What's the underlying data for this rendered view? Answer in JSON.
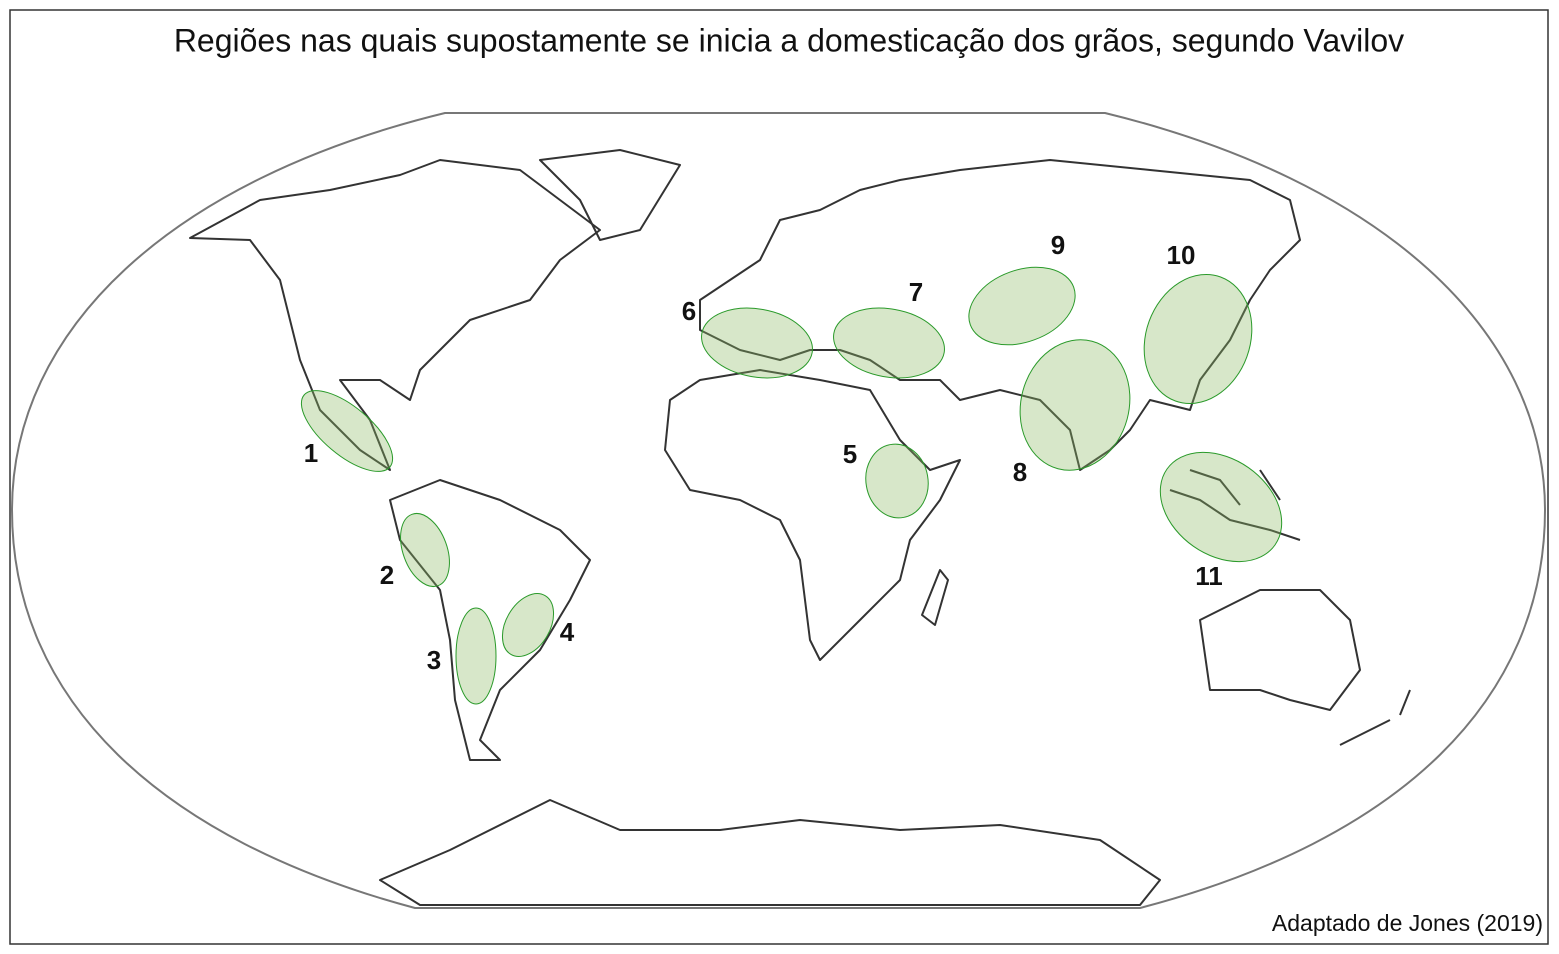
{
  "title": "Regiões nas quais supostamente se inicia a domesticação dos grãos, segundo Vavilov",
  "credit": "Adaptado de Jones (2019)",
  "regions": [
    {
      "label": "1"
    },
    {
      "label": "2"
    },
    {
      "label": "3"
    },
    {
      "label": "4"
    },
    {
      "label": "5"
    },
    {
      "label": "6"
    },
    {
      "label": "7"
    },
    {
      "label": "8"
    },
    {
      "label": "9"
    },
    {
      "label": "10"
    },
    {
      "label": "11"
    }
  ]
}
